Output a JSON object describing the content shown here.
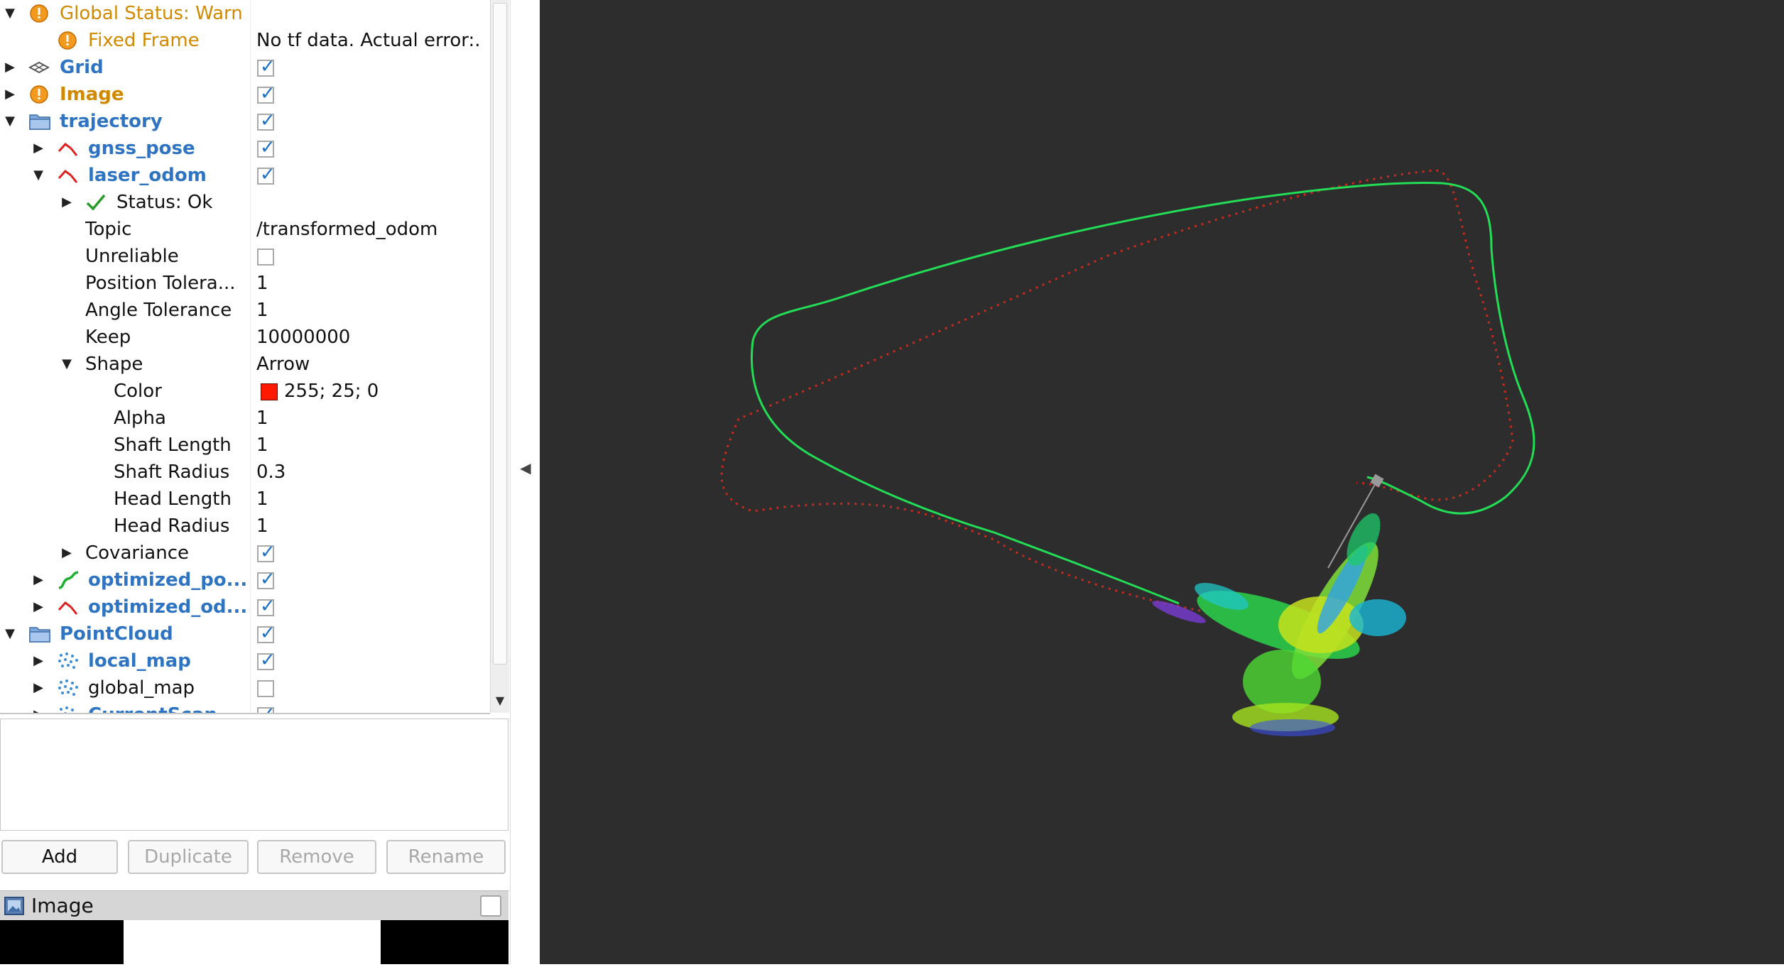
{
  "tree": {
    "rows": [
      {
        "id": "global-status",
        "label": "Global Status: Warn",
        "value": ""
      },
      {
        "id": "fixed-frame",
        "label": "Fixed Frame",
        "value": "No tf data.  Actual error:."
      },
      {
        "id": "grid",
        "label": "Grid",
        "checked": true
      },
      {
        "id": "image",
        "label": "Image",
        "checked": true
      },
      {
        "id": "trajectory",
        "label": "trajectory",
        "checked": true
      },
      {
        "id": "gnss-pose",
        "label": "gnss_pose",
        "checked": true
      },
      {
        "id": "laser-odom",
        "label": "laser_odom",
        "checked": true
      },
      {
        "id": "status-ok",
        "label": "Status: Ok"
      },
      {
        "id": "topic",
        "label": "Topic",
        "value": "/transformed_odom"
      },
      {
        "id": "unreliable",
        "label": "Unreliable",
        "checked": false
      },
      {
        "id": "position-tolerance",
        "label": "Position Tolera...",
        "value": "1"
      },
      {
        "id": "angle-tolerance",
        "label": "Angle Tolerance",
        "value": "1"
      },
      {
        "id": "keep",
        "label": "Keep",
        "value": "10000000"
      },
      {
        "id": "shape",
        "label": "Shape",
        "value": "Arrow"
      },
      {
        "id": "color",
        "label": "Color",
        "value": "255; 25; 0",
        "swatch": "#ff1900"
      },
      {
        "id": "alpha",
        "label": "Alpha",
        "value": "1"
      },
      {
        "id": "shaft-length",
        "label": "Shaft Length",
        "value": "1"
      },
      {
        "id": "shaft-radius",
        "label": "Shaft Radius",
        "value": "0.3"
      },
      {
        "id": "head-length",
        "label": "Head Length",
        "value": "1"
      },
      {
        "id": "head-radius",
        "label": "Head Radius",
        "value": "1"
      },
      {
        "id": "covariance",
        "label": "Covariance",
        "checked": true
      },
      {
        "id": "optimized-path",
        "label": "optimized_po...",
        "checked": true
      },
      {
        "id": "optimized-odom",
        "label": "optimized_od...",
        "checked": true
      },
      {
        "id": "pointcloud",
        "label": "PointCloud",
        "checked": true
      },
      {
        "id": "local-map",
        "label": "local_map",
        "checked": true
      },
      {
        "id": "global-map",
        "label": "global_map",
        "checked": false
      },
      {
        "id": "current-scan",
        "label": "CurrentScan",
        "checked": true
      }
    ]
  },
  "buttons": {
    "add": "Add",
    "duplicate": "Duplicate",
    "remove": "Remove",
    "rename": "Rename"
  },
  "image_panel": {
    "title": "Image"
  },
  "colors": {
    "warn": "#d18a00",
    "display_name": "#2f74c2",
    "viewport_bg": "#2d2d2d",
    "odom_path": "#c92a1d",
    "optimized_path": "#22dd55"
  },
  "icons": {
    "warn": "warning-icon",
    "grid": "grid-icon",
    "folder": "folder-icon",
    "odometry": "odometry-icon",
    "path": "path-icon",
    "pointcloud": "pointcloud-icon",
    "ok": "checkmark-icon",
    "image": "image-icon"
  }
}
